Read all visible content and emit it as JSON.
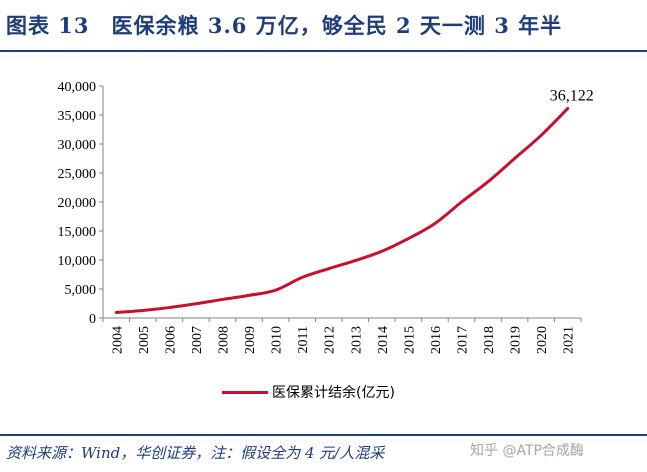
{
  "header": {
    "title": "图表 13　医保余粮 3.6 万亿，够全民 2 天一测 3 年半"
  },
  "legend": {
    "label": "医保累计结余(亿元)"
  },
  "footer": {
    "source": "资料来源：Wind，华创证券，注：假设全为 4 元/人混采",
    "watermark": "知乎 @ATP合成酶"
  },
  "colors": {
    "series": "#c8102e",
    "title": "#1f3d7a"
  },
  "chart_data": {
    "type": "line",
    "title": "",
    "xlabel": "",
    "ylabel": "",
    "categories": [
      "2004",
      "2005",
      "2006",
      "2007",
      "2008",
      "2009",
      "2010",
      "2011",
      "2012",
      "2013",
      "2014",
      "2015",
      "2016",
      "2017",
      "2018",
      "2019",
      "2020",
      "2021"
    ],
    "ylim": [
      0,
      40000
    ],
    "yticks": [
      0,
      5000,
      10000,
      15000,
      20000,
      25000,
      30000,
      35000,
      40000
    ],
    "ytick_labels": [
      "0",
      "5,000",
      "10,000",
      "15,000",
      "20,000",
      "25,000",
      "30,000",
      "35,000",
      "40,000"
    ],
    "series": [
      {
        "name": "医保累计结余(亿元)",
        "values": [
          950,
          1300,
          1800,
          2450,
          3200,
          3900,
          4800,
          7000,
          8500,
          9900,
          11500,
          13700,
          16300,
          20000,
          23500,
          27500,
          31500,
          36122
        ]
      }
    ],
    "annotations": [
      {
        "category": "2021",
        "value": 36122,
        "text": "36,122"
      }
    ],
    "grid": false,
    "legend_position": "bottom"
  }
}
